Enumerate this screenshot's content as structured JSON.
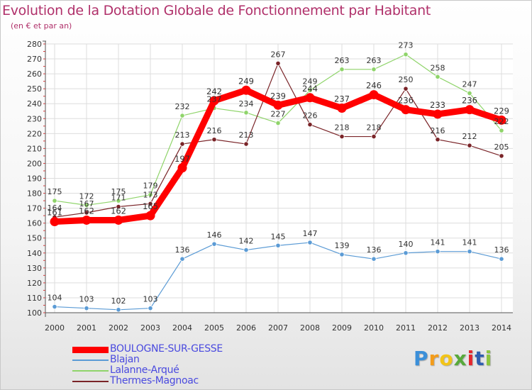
{
  "chart_data": {
    "type": "line",
    "title": "Evolution de la Dotation Globale de Fonctionnement par Habitant",
    "subtitle": "(en € et par an)",
    "xlabel": "",
    "ylabel": "",
    "x": [
      "2000",
      "2001",
      "2002",
      "2003",
      "2004",
      "2005",
      "2006",
      "2007",
      "2008",
      "2009",
      "2010",
      "2011",
      "2012",
      "2013",
      "2014"
    ],
    "ylim": [
      100,
      280
    ],
    "yticks": [
      "100",
      "110",
      "120",
      "130",
      "140",
      "150",
      "160",
      "170",
      "180",
      "190",
      "200",
      "210",
      "220",
      "230",
      "240",
      "250",
      "260",
      "270",
      "280"
    ],
    "grid": true,
    "legend_position": "bottom-left",
    "series": [
      {
        "name": "BOULOGNE-SUR-GESSE",
        "color": "#ff0000",
        "values": [
          161,
          162,
          162,
          165,
          197,
          242,
          249,
          239,
          244,
          237,
          246,
          236,
          233,
          236,
          229
        ]
      },
      {
        "name": "Blajan",
        "color": "#5b9bd5",
        "values": [
          104,
          103,
          102,
          103,
          136,
          146,
          142,
          145,
          147,
          139,
          136,
          140,
          141,
          141,
          136
        ]
      },
      {
        "name": "Lalanne-Arqué",
        "color": "#8fd46a",
        "values": [
          175,
          172,
          175,
          179,
          232,
          237,
          234,
          227,
          249,
          263,
          263,
          273,
          258,
          247,
          222
        ]
      },
      {
        "name": "Thermes-Magnoac",
        "color": "#7a2428",
        "values": [
          164,
          167,
          171,
          173,
          213,
          216,
          213,
          267,
          226,
          218,
          218,
          250,
          216,
          212,
          205
        ]
      }
    ]
  },
  "logo": {
    "letters": [
      "P",
      "r",
      "o",
      "x",
      "i",
      "t",
      "i"
    ],
    "colors": [
      "#3b8fd9",
      "#f39c1a",
      "#f2c418",
      "#58a93b",
      "#e5262e",
      "#2f5fb0",
      "#8cc63f"
    ]
  }
}
